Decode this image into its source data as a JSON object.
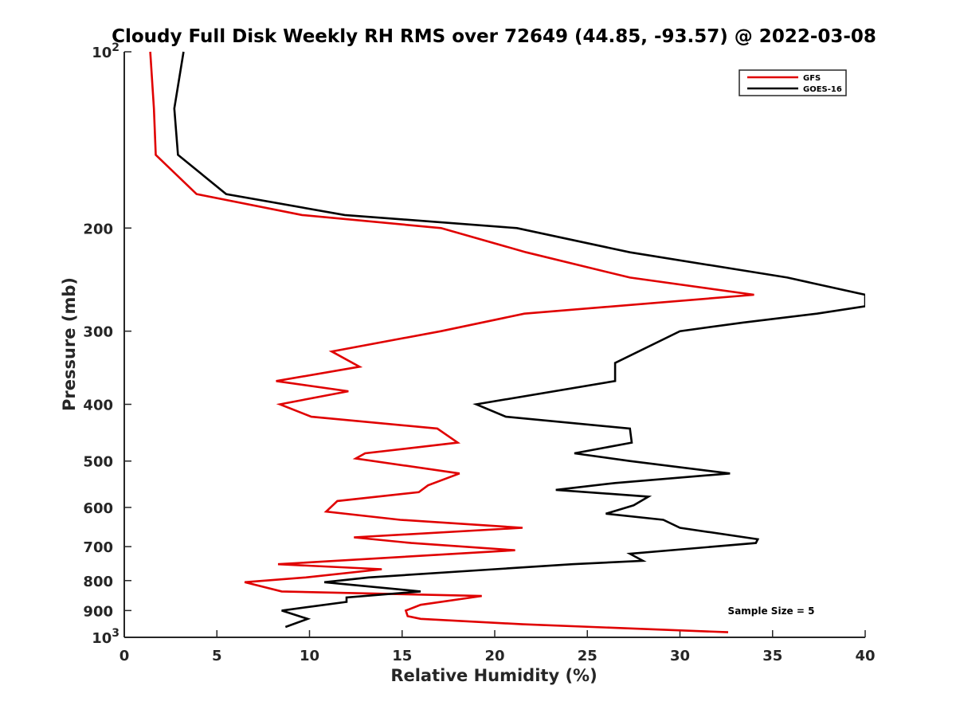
{
  "chart_data": {
    "type": "line",
    "title": "Cloudy Full Disk Weekly RH RMS over 72649 (44.85, -93.57) @ 2022-03-08",
    "xlabel": "Relative Humidity (%)",
    "ylabel": "Pressure (mb)",
    "xlim": [
      0,
      40
    ],
    "ylim": [
      100,
      1000
    ],
    "y_scale": "log",
    "y_reversed": true,
    "grid": false,
    "legend_position": "top-right",
    "x_ticks": [
      {
        "value": 0,
        "label": "0"
      },
      {
        "value": 5,
        "label": "5"
      },
      {
        "value": 10,
        "label": "10"
      },
      {
        "value": 15,
        "label": "15"
      },
      {
        "value": 20,
        "label": "20"
      },
      {
        "value": 25,
        "label": "25"
      },
      {
        "value": 30,
        "label": "30"
      },
      {
        "value": 35,
        "label": "35"
      },
      {
        "value": 40,
        "label": "40"
      }
    ],
    "y_ticks": [
      {
        "value": 100,
        "label": "10",
        "exponent": "2"
      },
      {
        "value": 200,
        "label": "200",
        "exponent": ""
      },
      {
        "value": 300,
        "label": "300",
        "exponent": ""
      },
      {
        "value": 400,
        "label": "400",
        "exponent": ""
      },
      {
        "value": 500,
        "label": "500",
        "exponent": ""
      },
      {
        "value": 600,
        "label": "600",
        "exponent": ""
      },
      {
        "value": 700,
        "label": "700",
        "exponent": ""
      },
      {
        "value": 800,
        "label": "800",
        "exponent": ""
      },
      {
        "value": 900,
        "label": "900",
        "exponent": ""
      },
      {
        "value": 1000,
        "label": "10",
        "exponent": "3"
      }
    ],
    "annotation": "Sample Size = 5",
    "series": [
      {
        "name": "GFS",
        "color": "#e00000",
        "points": [
          [
            1.4,
            100
          ],
          [
            1.6,
            125
          ],
          [
            1.7,
            150
          ],
          [
            3.9,
            175
          ],
          [
            9.6,
            190
          ],
          [
            17.1,
            200
          ],
          [
            21.7,
            220
          ],
          [
            27.3,
            243
          ],
          [
            34.0,
            260
          ],
          [
            21.6,
            280
          ],
          [
            17.1,
            300
          ],
          [
            11.2,
            325
          ],
          [
            12.7,
            345
          ],
          [
            8.2,
            365
          ],
          [
            12.1,
            380
          ],
          [
            8.4,
            400
          ],
          [
            10.1,
            420
          ],
          [
            16.9,
            440
          ],
          [
            18.0,
            465
          ],
          [
            13.0,
            485
          ],
          [
            12.5,
            495
          ],
          [
            18.1,
            525
          ],
          [
            16.4,
            550
          ],
          [
            15.9,
            565
          ],
          [
            11.5,
            585
          ],
          [
            10.9,
            610
          ],
          [
            14.9,
            630
          ],
          [
            21.5,
            650
          ],
          [
            12.4,
            675
          ],
          [
            15.5,
            690
          ],
          [
            21.1,
            710
          ],
          [
            8.3,
            750
          ],
          [
            13.9,
            765
          ],
          [
            9.8,
            790
          ],
          [
            6.5,
            805
          ],
          [
            8.5,
            835
          ],
          [
            19.3,
            850
          ],
          [
            16.0,
            880
          ],
          [
            15.2,
            900
          ],
          [
            15.3,
            920
          ],
          [
            16.0,
            930
          ],
          [
            21.5,
            950
          ],
          [
            32.6,
            980
          ]
        ]
      },
      {
        "name": "GOES-16",
        "color": "#000000",
        "points": [
          [
            3.2,
            100
          ],
          [
            2.7,
            125
          ],
          [
            2.9,
            150
          ],
          [
            5.5,
            175
          ],
          [
            11.9,
            190
          ],
          [
            21.2,
            200
          ],
          [
            27.3,
            220
          ],
          [
            35.8,
            243
          ],
          [
            40.0,
            260
          ],
          [
            40.0,
            272
          ],
          [
            37.4,
            280
          ],
          [
            33.4,
            290
          ],
          [
            30.0,
            300
          ],
          [
            26.5,
            340
          ],
          [
            26.5,
            350
          ],
          [
            26.5,
            365
          ],
          [
            19.0,
            400
          ],
          [
            20.6,
            420
          ],
          [
            27.3,
            440
          ],
          [
            27.4,
            465
          ],
          [
            24.3,
            485
          ],
          [
            27.3,
            500
          ],
          [
            32.7,
            525
          ],
          [
            26.5,
            545
          ],
          [
            23.3,
            560
          ],
          [
            28.3,
            575
          ],
          [
            27.5,
            595
          ],
          [
            26.0,
            615
          ],
          [
            29.1,
            630
          ],
          [
            30.0,
            650
          ],
          [
            34.2,
            680
          ],
          [
            34.1,
            690
          ],
          [
            27.3,
            720
          ],
          [
            28.0,
            740
          ],
          [
            24.2,
            750
          ],
          [
            20.0,
            765
          ],
          [
            13.2,
            790
          ],
          [
            10.8,
            805
          ],
          [
            16.0,
            835
          ],
          [
            12.0,
            855
          ],
          [
            12.0,
            870
          ],
          [
            8.5,
            900
          ],
          [
            9.9,
            930
          ],
          [
            8.7,
            960
          ]
        ]
      }
    ]
  }
}
